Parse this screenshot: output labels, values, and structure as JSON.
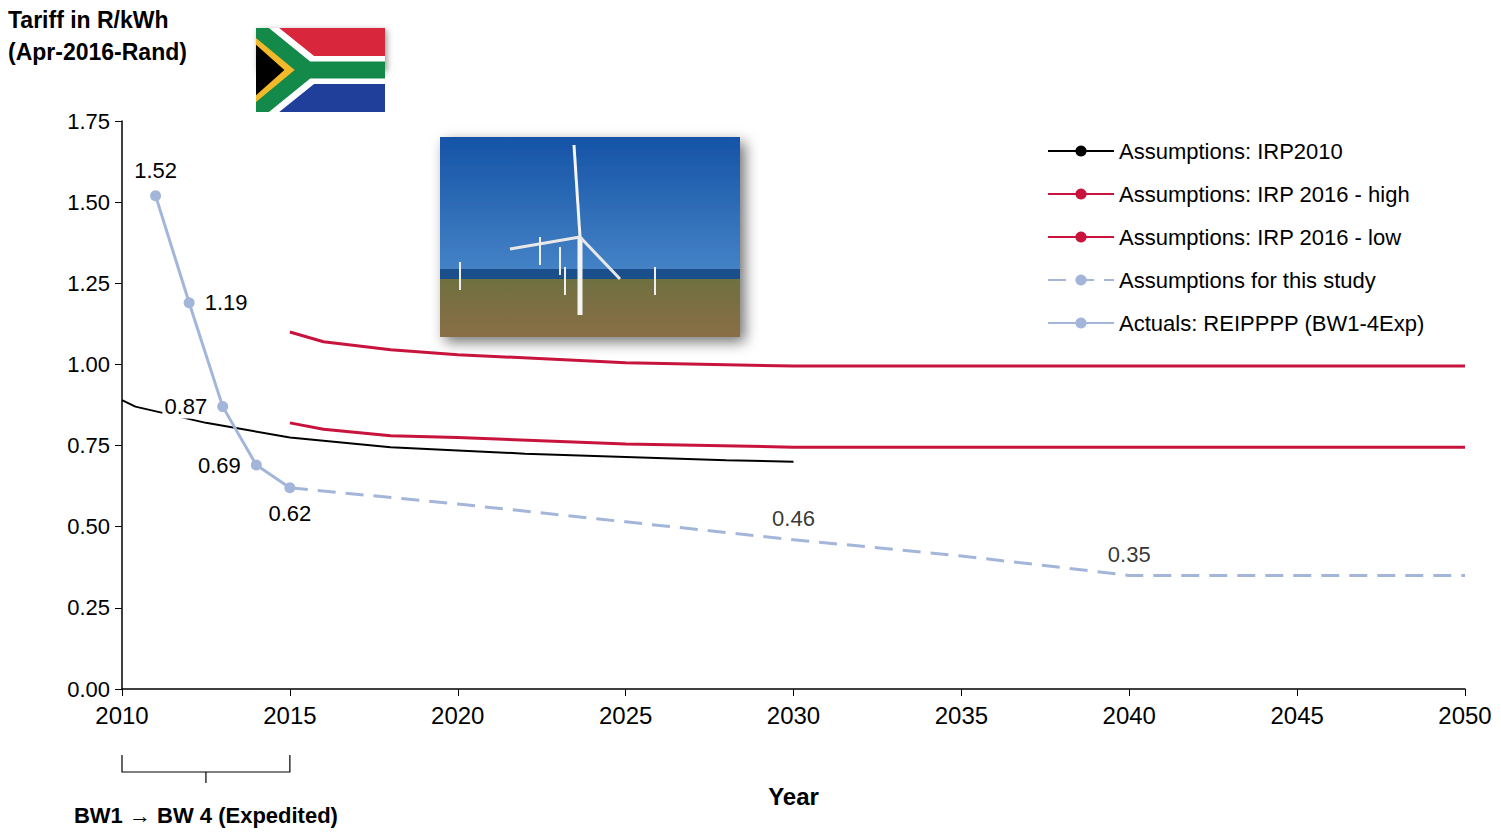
{
  "chart_data": {
    "type": "line",
    "y_label": "Tariff in R/kWh\n(Apr-2016-Rand)",
    "x_label": "Year",
    "xlim": [
      2010,
      2050
    ],
    "xticks": [
      2010,
      2015,
      2020,
      2025,
      2030,
      2035,
      2040,
      2045,
      2050
    ],
    "ylim": [
      0,
      1.75
    ],
    "yticks": [
      {
        "value": 0,
        "label": "0.00"
      },
      {
        "value": 0.25,
        "label": "0.25"
      },
      {
        "value": 0.5,
        "label": "0.50"
      },
      {
        "value": 0.75,
        "label": "0.75"
      },
      {
        "value": 1,
        "label": "1.00"
      },
      {
        "value": 1.25,
        "label": "1.25"
      },
      {
        "value": 1.5,
        "label": "1.50"
      },
      {
        "value": 1.75,
        "label": "1.75"
      }
    ],
    "grid": false,
    "legend": "upper right",
    "series": [
      {
        "name": "Assumptions: IRP2010",
        "color": "#000000",
        "marker": "none",
        "line_style": "solid",
        "x": [
          2010,
          2010.4,
          2012.5,
          2015,
          2018,
          2020,
          2022,
          2025,
          2028,
          2030
        ],
        "values": [
          0.89,
          0.87,
          0.82,
          0.775,
          0.745,
          0.735,
          0.725,
          0.715,
          0.705,
          0.7
        ]
      },
      {
        "name": "Assumptions: IRP 2016 - high",
        "color": "#c8143c",
        "marker": "none",
        "line_style": "solid",
        "x": [
          2015,
          2016,
          2018,
          2020,
          2025,
          2030,
          2050
        ],
        "values": [
          1.1,
          1.07,
          1.045,
          1.03,
          1.005,
          0.995,
          0.995
        ]
      },
      {
        "name": "Assumptions: IRP 2016 - low",
        "color": "#c8143c",
        "marker": "none",
        "line_style": "solid",
        "x": [
          2015,
          2016,
          2018,
          2020,
          2025,
          2030,
          2050
        ],
        "values": [
          0.82,
          0.8,
          0.78,
          0.775,
          0.755,
          0.745,
          0.745
        ]
      },
      {
        "name": "Assumptions for this study",
        "color": "#a3b6da",
        "marker": "none",
        "line_style": "dashed",
        "x": [
          2015,
          2020,
          2025,
          2030,
          2035,
          2040,
          2050
        ],
        "values": [
          0.62,
          0.57,
          0.515,
          0.46,
          0.41,
          0.35,
          0.35
        ],
        "value_labels": [
          null,
          null,
          null,
          "0.46",
          null,
          "0.35",
          null
        ]
      },
      {
        "name": "Actuals: REIPPPP (BW1-4Exp)",
        "color": "#a3b6da",
        "marker": "circle",
        "line_style": "solid",
        "data_labels": true,
        "x": [
          2011,
          2012,
          2013,
          2014,
          2015
        ],
        "values": [
          1.52,
          1.19,
          0.87,
          0.69,
          0.62
        ]
      }
    ],
    "annotations": [
      {
        "text": "BW1 → BW 4 (Expedited)",
        "x_range": [
          2010,
          2015
        ]
      }
    ]
  }
}
